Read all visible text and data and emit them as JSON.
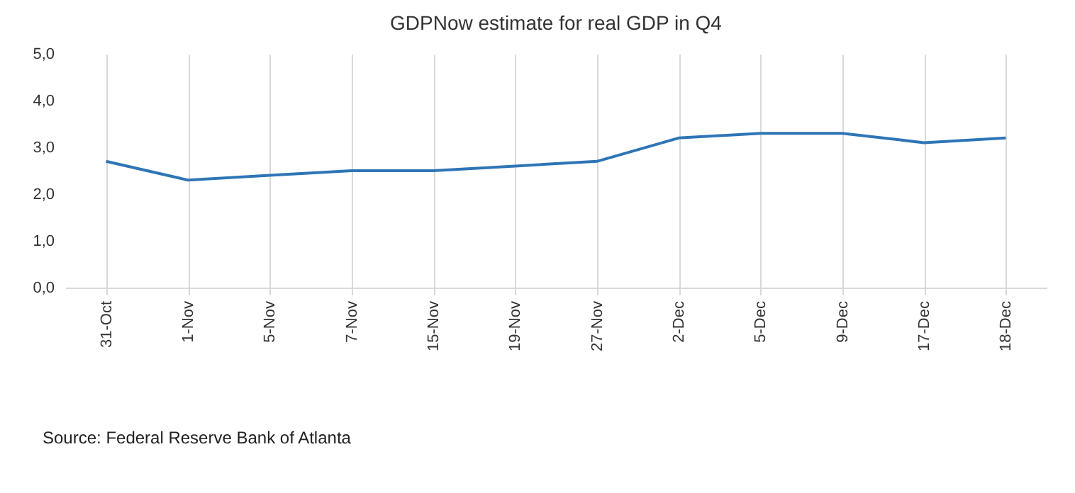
{
  "chart_data": {
    "type": "line",
    "title": "GDPNow estimate for real GDP in Q4",
    "categories": [
      "31-Oct",
      "1-Nov",
      "5-Nov",
      "7-Nov",
      "15-Nov",
      "19-Nov",
      "27-Nov",
      "2-Dec",
      "5-Dec",
      "9-Dec",
      "17-Dec",
      "18-Dec"
    ],
    "series": [
      {
        "color": "#2e75b6",
        "values": [
          2.7,
          2.3,
          2.4,
          2.5,
          2.5,
          2.6,
          2.7,
          3.2,
          3.3,
          3.3,
          3.1,
          3.2
        ]
      }
    ],
    "ylim": [
      0,
      5
    ],
    "yticks": [
      {
        "value": 0,
        "label": "0,0"
      },
      {
        "value": 1,
        "label": "1,0"
      },
      {
        "value": 2,
        "label": "2,0"
      },
      {
        "value": 3,
        "label": "3,0"
      },
      {
        "value": 4,
        "label": "4,0"
      },
      {
        "value": 5,
        "label": "5,0"
      }
    ],
    "grid": "x",
    "marker": "none",
    "line_style": "solid",
    "annotations": [
      "Source: Federal Reserve Bank of Atlanta"
    ]
  }
}
